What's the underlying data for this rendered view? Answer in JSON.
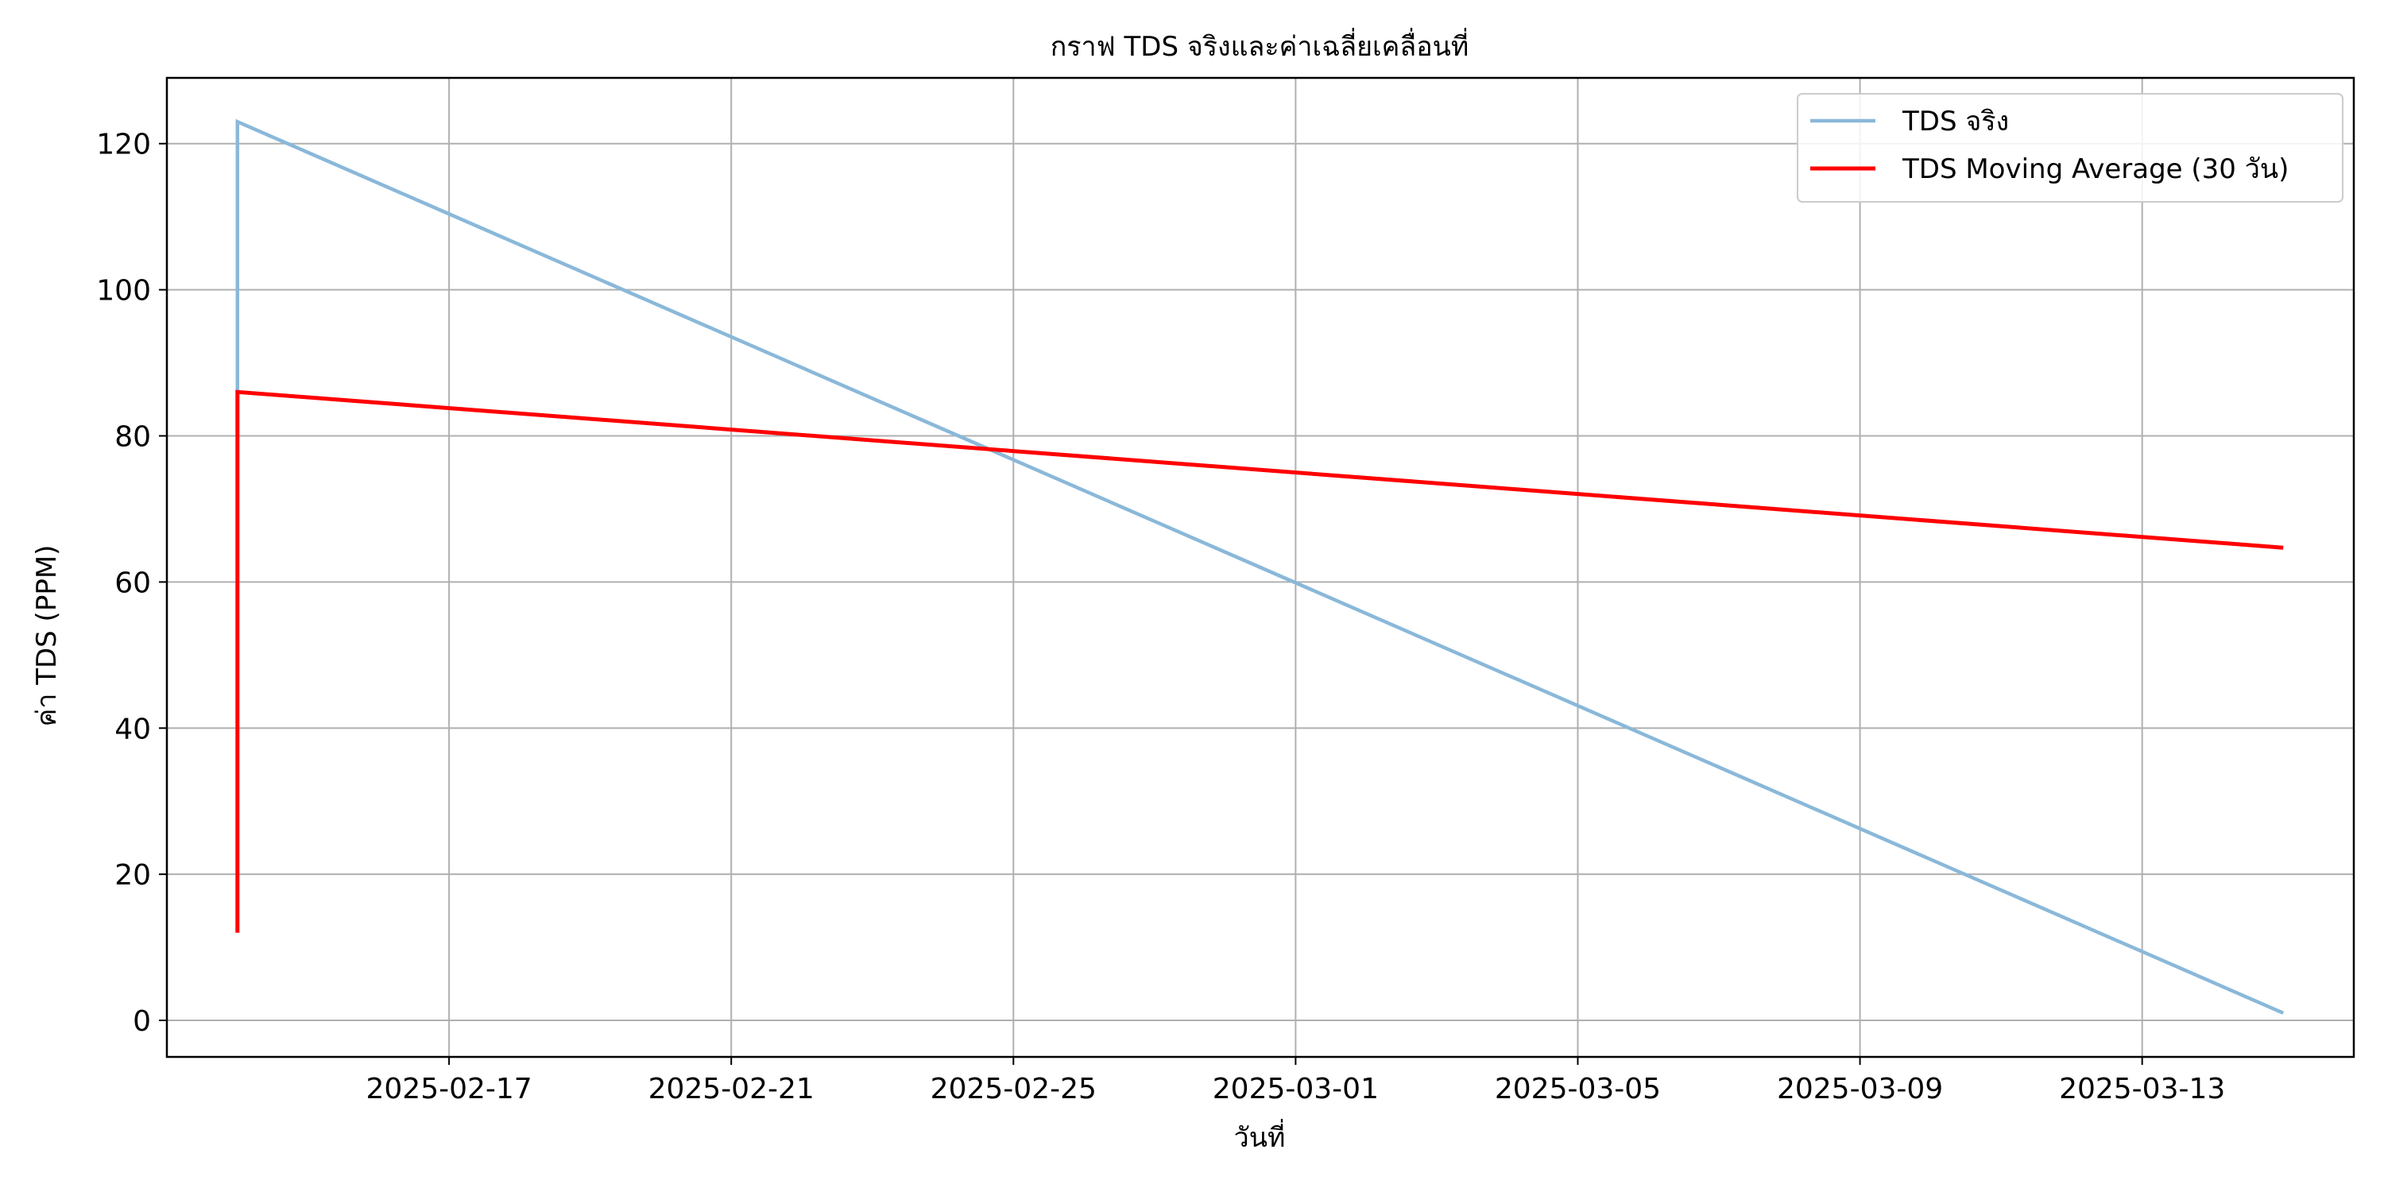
{
  "chart_data": {
    "type": "line",
    "title": "กราฟ TDS จริงและค่าเฉลี่ยเคลื่อนที่",
    "xlabel": "วันที่",
    "ylabel": "ค่า TDS (PPM)",
    "x_ticks": [
      "2025-02-17",
      "2025-02-21",
      "2025-02-25",
      "2025-03-01",
      "2025-03-05",
      "2025-03-09",
      "2025-03-13"
    ],
    "y_ticks": [
      0,
      20,
      40,
      60,
      80,
      100,
      120
    ],
    "xlim": [
      "2025-02-13",
      "2025-03-16"
    ],
    "ylim": [
      -5,
      129
    ],
    "grid": true,
    "legend_position": "top-right",
    "series": [
      {
        "name": "TDS จริง",
        "color": "#8ab8d9",
        "points": [
          {
            "x": "2025-02-14",
            "y": 85
          },
          {
            "x": "2025-02-14",
            "y": 123
          },
          {
            "x": "2025-03-15",
            "y": 1
          }
        ]
      },
      {
        "name": "TDS Moving Average (30 วัน)",
        "color": "#ff0000",
        "points": [
          {
            "x": "2025-02-14",
            "y": 12
          },
          {
            "x": "2025-02-14",
            "y": 86
          },
          {
            "x": "2025-03-15",
            "y": 64.7
          }
        ]
      }
    ]
  }
}
